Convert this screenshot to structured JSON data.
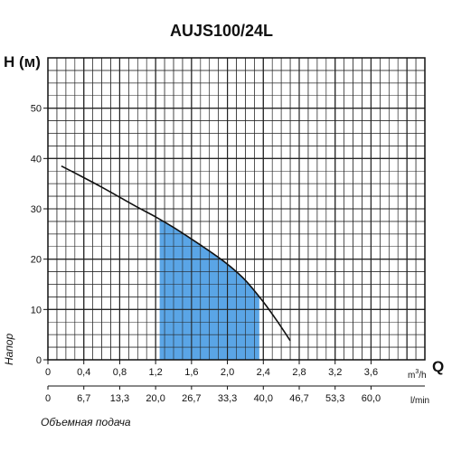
{
  "chart_data": {
    "type": "line",
    "title": "AUJS100/24L",
    "ylabel": "H (м)",
    "xlabel": "Q",
    "x_unit": "m³/h",
    "x_unit_base": "m",
    "x_unit_sup": "3",
    "x_unit_tail": "/h",
    "x2_unit": "l/min",
    "side_label": "Напор",
    "bottom_label": "Объемная подача",
    "xlim": [
      0,
      4.2
    ],
    "ylim": [
      0,
      60
    ],
    "x_ticks": [
      "0",
      "0,4",
      "0,8",
      "1,2",
      "1,6",
      "2,0",
      "2,4",
      "2,8",
      "3,2",
      "3,6"
    ],
    "x_tick_values": [
      0,
      0.4,
      0.8,
      1.2,
      1.6,
      2.0,
      2.4,
      2.8,
      3.2,
      3.6
    ],
    "x2_ticks": [
      "0",
      "6,7",
      "13,3",
      "20,0",
      "26,7",
      "33,3",
      "40,0",
      "46,7",
      "53,3",
      "60,0"
    ],
    "y_ticks": [
      "0",
      "10",
      "20",
      "30",
      "40",
      "50"
    ],
    "y_tick_values": [
      0,
      10,
      20,
      30,
      40,
      50
    ],
    "grid": true,
    "grid_minor_x": 0.1,
    "grid_minor_y": 2.5,
    "series": [
      {
        "x": [
          0.15,
          0.4,
          0.6,
          0.8,
          1.0,
          1.2,
          1.4,
          1.6,
          1.8,
          2.0,
          2.2,
          2.4,
          2.55,
          2.7
        ],
        "y": [
          38.5,
          36.2,
          34.3,
          32.3,
          30.3,
          28.4,
          26.3,
          24.0,
          21.6,
          19.0,
          15.8,
          11.5,
          7.8,
          3.8
        ]
      }
    ],
    "highlight_range": [
      1.25,
      2.35
    ],
    "colors": {
      "curve": "#111111",
      "highlight": "#5aa5e6",
      "grid": "#222222"
    }
  }
}
